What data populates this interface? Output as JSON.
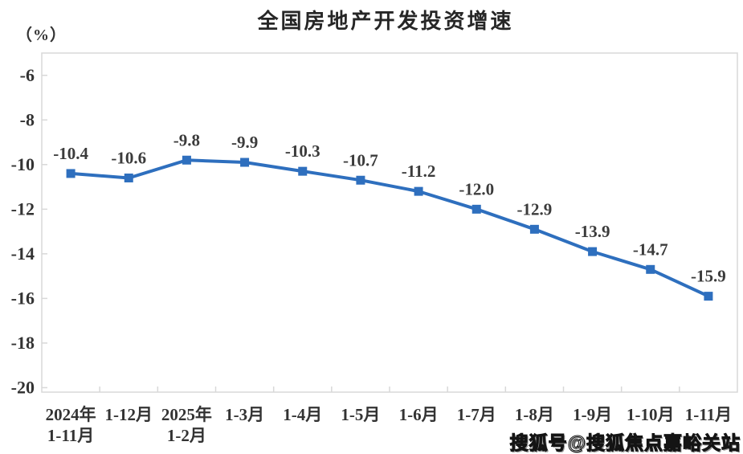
{
  "title": "全国房地产开发投资增速",
  "y_axis_unit": "（%）",
  "watermark": "搜狐号@搜狐焦点嘉峪关站",
  "chart_data": {
    "type": "line",
    "title": "全国房地产开发投资增速",
    "unit_label": "（%）",
    "categories": [
      [
        "2024年",
        "1-11月"
      ],
      [
        "1-12月"
      ],
      [
        "2025年",
        "1-2月"
      ],
      [
        "1-3月"
      ],
      [
        "1-4月"
      ],
      [
        "1-5月"
      ],
      [
        "1-6月"
      ],
      [
        "1-7月"
      ],
      [
        "1-8月"
      ],
      [
        "1-9月"
      ],
      [
        "1-10月"
      ],
      [
        "1-11月"
      ]
    ],
    "values": [
      -10.4,
      -10.6,
      -9.8,
      -9.9,
      -10.3,
      -10.7,
      -11.2,
      -12.0,
      -12.9,
      -13.9,
      -14.7,
      -15.9
    ],
    "data_labels": [
      "-10.4",
      "-10.6",
      "-9.8",
      "-9.9",
      "-10.3",
      "-10.7",
      "-11.2",
      "-12.0",
      "-12.9",
      "-13.9",
      "-14.7",
      "-15.9"
    ],
    "yticks": [
      -6,
      -8,
      -10,
      -12,
      -14,
      -16,
      -18,
      -20
    ],
    "ylim": [
      -20.2,
      -5
    ],
    "xlabel": "",
    "ylabel": "（%）",
    "grid": false,
    "legend": "none",
    "marker": "square",
    "line_color": "#2E6FBE",
    "axis_color": "#D8D8D8",
    "label_color": "#3b3b3b"
  }
}
